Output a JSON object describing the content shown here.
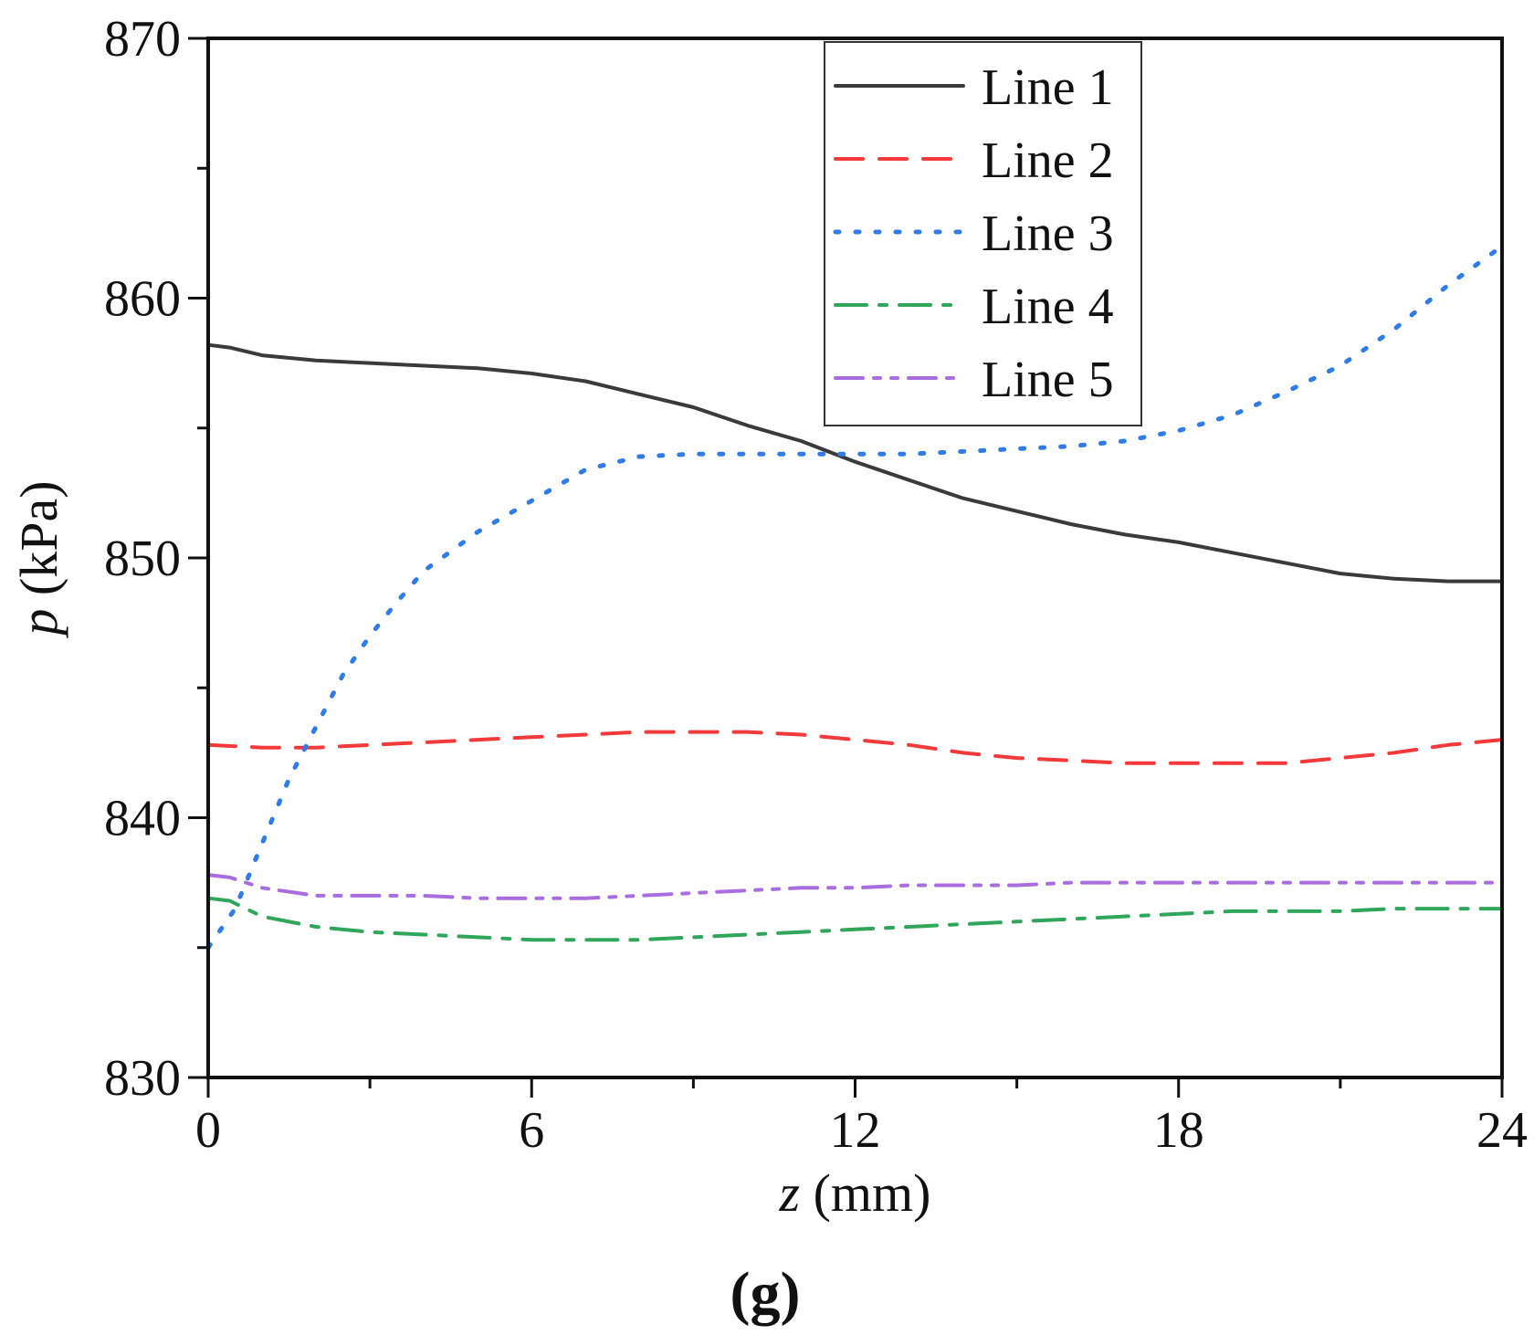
{
  "chart_data": {
    "type": "line",
    "panel_label": "(g)",
    "xlabel": {
      "var": "z",
      "unit": " (mm)"
    },
    "ylabel": {
      "var": "p",
      "unit": " (kPa)"
    },
    "xlim": [
      0,
      24
    ],
    "ylim": [
      830,
      870
    ],
    "xticks": [
      0,
      6,
      12,
      18,
      24
    ],
    "yticks": [
      830,
      840,
      850,
      860,
      870
    ],
    "legend_position": "top-right",
    "grid": false,
    "series": [
      {
        "name": "Line 1",
        "color": "#3a3a3a",
        "style": "solid",
        "x": [
          0,
          0.4,
          1,
          2,
          3,
          4,
          5,
          6,
          7,
          8,
          9,
          10,
          11,
          12,
          13,
          14,
          15,
          16,
          17,
          18,
          19,
          20,
          21,
          22,
          23,
          24
        ],
        "y": [
          858.2,
          858.1,
          857.8,
          857.6,
          857.5,
          857.4,
          857.3,
          857.1,
          856.8,
          856.3,
          855.8,
          855.1,
          854.5,
          853.7,
          853.0,
          852.3,
          851.8,
          851.3,
          850.9,
          850.6,
          850.2,
          849.8,
          849.4,
          849.2,
          849.1,
          849.1
        ]
      },
      {
        "name": "Line 2",
        "color": "#f23a3a",
        "style": "dashed",
        "x": [
          0,
          1,
          2,
          3,
          4,
          5,
          6,
          7,
          8,
          9,
          10,
          11,
          12,
          13,
          14,
          15,
          16,
          17,
          18,
          19,
          20,
          21,
          22,
          23,
          24
        ],
        "y": [
          842.8,
          842.7,
          842.7,
          842.8,
          842.9,
          843.0,
          843.1,
          843.2,
          843.3,
          843.3,
          843.3,
          843.2,
          843.0,
          842.8,
          842.5,
          842.3,
          842.2,
          842.1,
          842.1,
          842.1,
          842.1,
          842.3,
          842.5,
          842.8,
          843.0
        ]
      },
      {
        "name": "Line 3",
        "color": "#2f7ce8",
        "style": "dotted",
        "x": [
          0,
          0.5,
          1,
          1.5,
          2,
          2.5,
          3,
          3.5,
          4,
          5,
          6,
          7,
          8,
          9,
          10,
          11,
          12,
          13,
          14,
          15,
          16,
          17,
          18,
          19,
          20,
          21,
          22,
          23,
          24
        ],
        "y": [
          835.0,
          836.5,
          839.0,
          841.5,
          843.5,
          845.5,
          847.0,
          848.3,
          849.5,
          851.0,
          852.2,
          853.4,
          853.9,
          854.0,
          854.0,
          854.0,
          854.0,
          854.0,
          854.1,
          854.2,
          854.3,
          854.5,
          854.9,
          855.5,
          856.4,
          857.4,
          858.8,
          860.5,
          862.0
        ]
      },
      {
        "name": "Line 4",
        "color": "#2fa65a",
        "style": "dashdot",
        "x": [
          0,
          0.4,
          1,
          2,
          3,
          4,
          5,
          6,
          7,
          8,
          9,
          10,
          11,
          12,
          13,
          14,
          15,
          16,
          17,
          18,
          19,
          20,
          21,
          22,
          23,
          24
        ],
        "y": [
          836.9,
          836.8,
          836.2,
          835.8,
          835.6,
          835.5,
          835.4,
          835.3,
          835.3,
          835.3,
          835.4,
          835.5,
          835.6,
          835.7,
          835.8,
          835.9,
          836.0,
          836.1,
          836.2,
          836.3,
          836.4,
          836.4,
          836.4,
          836.5,
          836.5,
          836.5
        ]
      },
      {
        "name": "Line 5",
        "color": "#a96de0",
        "style": "dashdotdot",
        "x": [
          0,
          0.4,
          1,
          2,
          3,
          4,
          5,
          6,
          7,
          8,
          9,
          10,
          11,
          12,
          13,
          14,
          15,
          16,
          17,
          18,
          19,
          20,
          21,
          22,
          23,
          24
        ],
        "y": [
          837.8,
          837.7,
          837.3,
          837.0,
          837.0,
          837.0,
          836.9,
          836.9,
          836.9,
          837.0,
          837.1,
          837.2,
          837.3,
          837.3,
          837.4,
          837.4,
          837.4,
          837.5,
          837.5,
          837.5,
          837.5,
          837.5,
          837.5,
          837.5,
          837.5,
          837.5
        ]
      }
    ]
  }
}
